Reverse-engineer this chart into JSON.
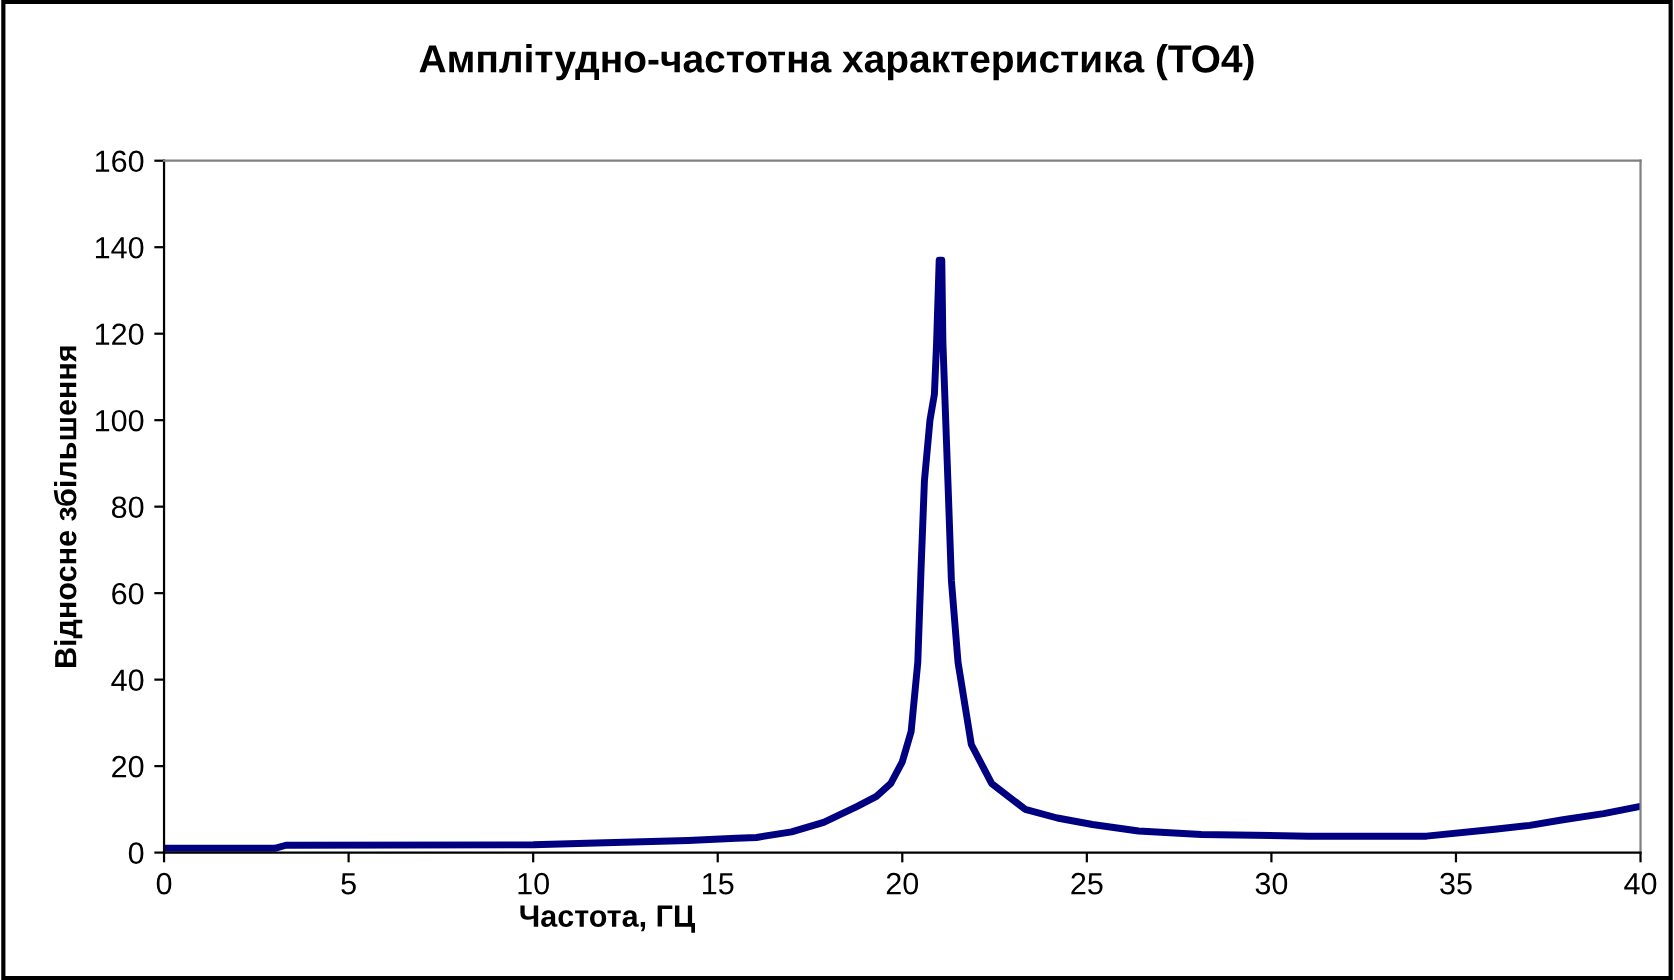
{
  "chart_data": {
    "type": "line",
    "title": "Амплітудно-частотна характеристика (ТО4)",
    "xlabel": "Частота, ГЦ",
    "ylabel": "Відносне збільшення",
    "series": [
      {
        "color": "#000080",
        "x": [
          0,
          3,
          3.3,
          10,
          11.7,
          14.2,
          15.5,
          16.05,
          17.0,
          17.87,
          18.78,
          19.3,
          19.69,
          20.0,
          20.24,
          20.42,
          20.51,
          20.6,
          20.75,
          20.87,
          20.93,
          21.0,
          21.07,
          21.1,
          21.24,
          21.33,
          21.51,
          21.87,
          22.42,
          23.33,
          24.2,
          25.15,
          26.4,
          28.1,
          31,
          34.2,
          36.05,
          37.0,
          37.9,
          39.0,
          40
        ],
        "values": [
          1,
          1,
          1.7,
          1.8,
          2.2,
          2.8,
          3.3,
          3.5,
          4.8,
          7,
          10.7,
          13,
          16,
          21,
          28,
          44,
          66,
          86,
          100,
          106,
          118,
          137,
          137,
          118,
          85,
          63,
          44,
          25,
          16,
          10,
          8,
          6.5,
          5,
          4.2,
          3.8,
          3.8,
          5.4,
          6.3,
          7.6,
          9,
          10.7
        ]
      }
    ],
    "xlim": [
      0,
      40
    ],
    "ylim": [
      0,
      160
    ],
    "xticks": [
      0,
      5,
      10,
      15,
      20,
      25,
      30,
      35,
      40
    ],
    "yticks": [
      0,
      20,
      40,
      60,
      80,
      100,
      120,
      140,
      160
    ],
    "grid": false,
    "marker": "none",
    "line_style": "solid"
  }
}
